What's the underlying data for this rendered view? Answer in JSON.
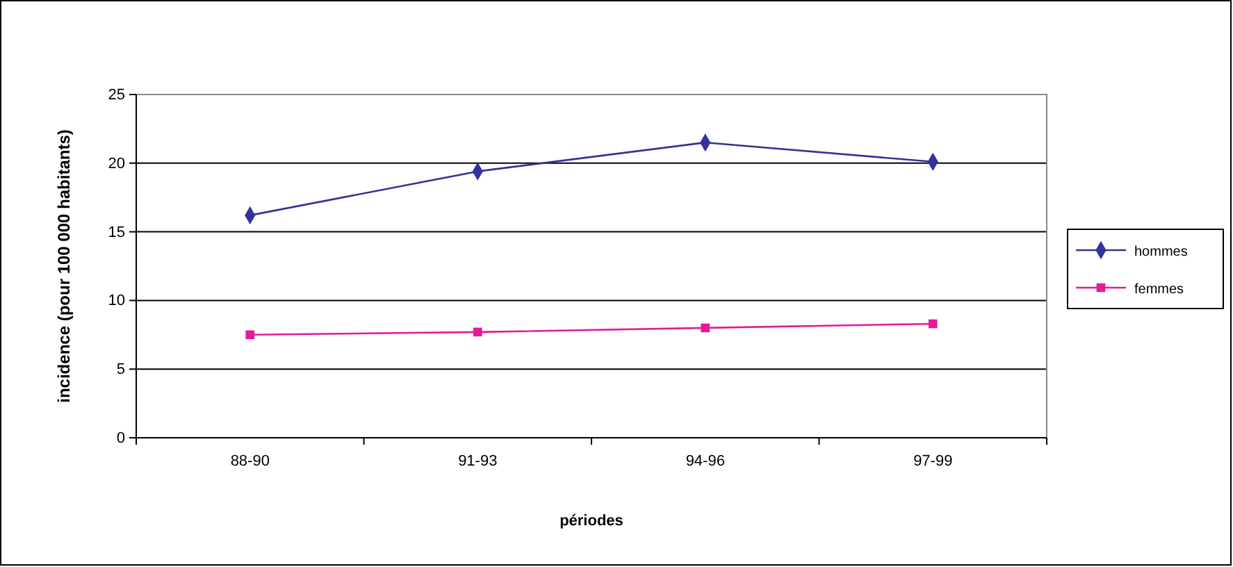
{
  "chart_data": {
    "type": "line",
    "xlabel": "périodes",
    "ylabel": "incidence (pour 100 000 habitants)",
    "categories": [
      "88-90",
      "91-93",
      "94-96",
      "97-99"
    ],
    "series": [
      {
        "name": "hommes",
        "color": "#333399",
        "marker": "diamond",
        "values": [
          16.2,
          19.4,
          21.5,
          20.1
        ]
      },
      {
        "name": "femmes",
        "color": "#e6199a",
        "marker": "square",
        "values": [
          7.5,
          7.7,
          8.0,
          8.3
        ]
      }
    ],
    "ylim": [
      0,
      25
    ],
    "yticks": [
      0,
      5,
      10,
      15,
      20,
      25
    ],
    "grid": "y",
    "legend": "right",
    "line_style": "solid"
  }
}
